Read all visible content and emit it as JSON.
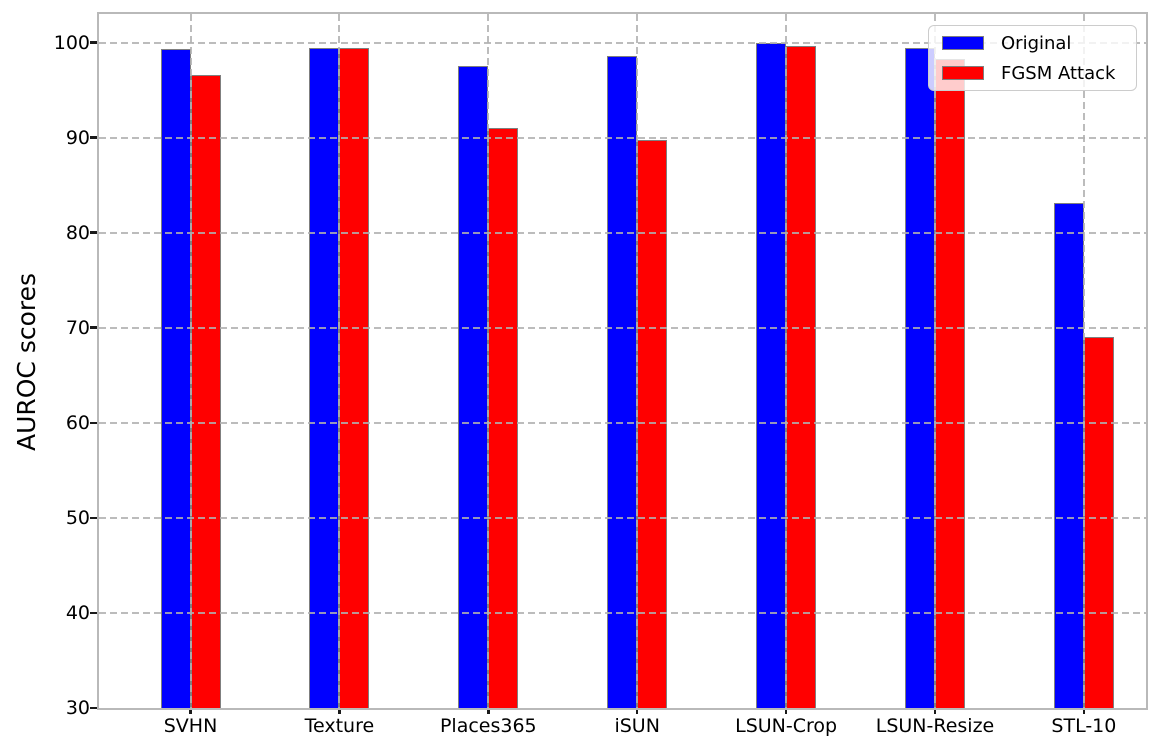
{
  "chart_data": {
    "type": "bar",
    "title": "",
    "xlabel": "",
    "ylabel": "AUROC scores",
    "categories": [
      "SVHN",
      "Texture",
      "Places365",
      "iSUN",
      "LSUN-Crop",
      "LSUN-Resize",
      "STL-10"
    ],
    "series": [
      {
        "name": "Original",
        "color": "#0000ff",
        "values": [
          99.3,
          99.4,
          97.5,
          98.6,
          99.9,
          99.4,
          83.1
        ]
      },
      {
        "name": "FGSM Attack",
        "color": "#ff0000",
        "values": [
          96.6,
          99.4,
          91.0,
          89.8,
          99.6,
          98.3,
          69.0
        ]
      }
    ],
    "ylim": [
      30,
      100
    ],
    "yticks": [
      30,
      40,
      50,
      60,
      70,
      80,
      90,
      100
    ],
    "grid": true,
    "grid_style": "dashed",
    "bar_edge_color": "#7f7f7f",
    "legend_position": "upper right"
  }
}
